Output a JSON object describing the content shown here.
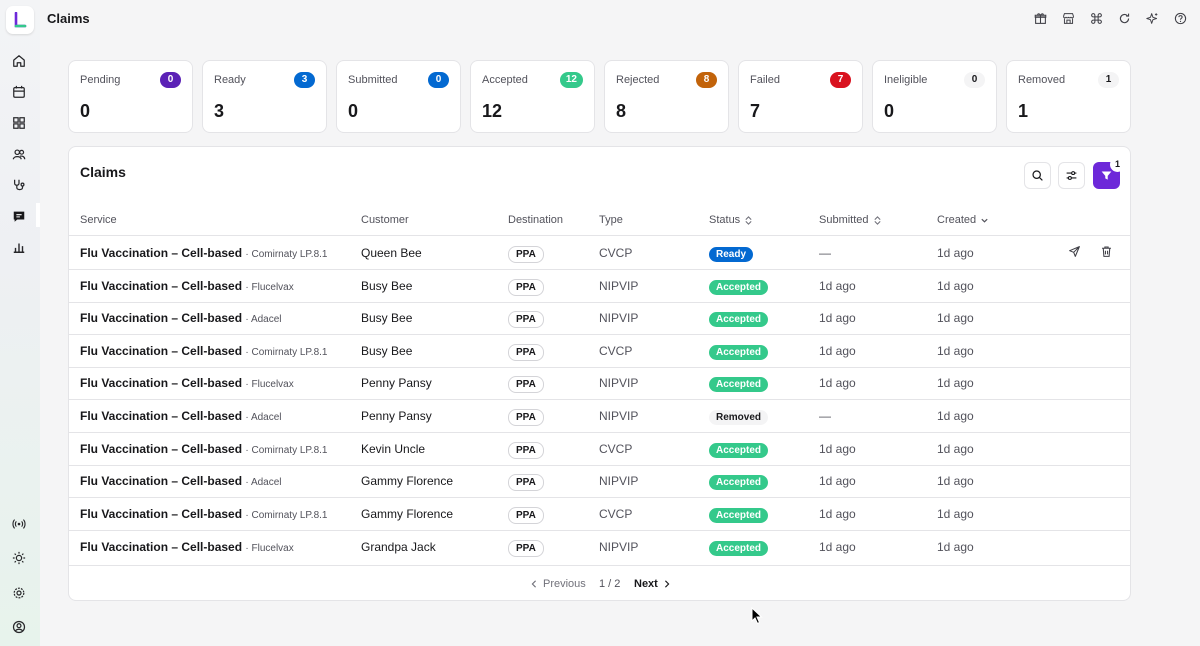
{
  "header": {
    "title": "Claims"
  },
  "colors": {
    "pending": "#5b21b6",
    "ready": "#0369d1",
    "submitted": "#0369d1",
    "accepted": "#34c98b",
    "rejected": "#c2630a",
    "failed": "#d9121f",
    "ineligible": "#f4f4f5",
    "removed": "#f4f4f5",
    "filter": "#6d28d9"
  },
  "cards": [
    {
      "label": "Pending",
      "badge": "0",
      "value": "0",
      "color": "#5b21b6",
      "light": false
    },
    {
      "label": "Ready",
      "badge": "3",
      "value": "3",
      "color": "#0369d1",
      "light": false
    },
    {
      "label": "Submitted",
      "badge": "0",
      "value": "0",
      "color": "#0369d1",
      "light": false
    },
    {
      "label": "Accepted",
      "badge": "12",
      "value": "12",
      "color": "#34c98b",
      "light": false
    },
    {
      "label": "Rejected",
      "badge": "8",
      "value": "8",
      "color": "#c2630a",
      "light": false
    },
    {
      "label": "Failed",
      "badge": "7",
      "value": "7",
      "color": "#d9121f",
      "light": false
    },
    {
      "label": "Ineligible",
      "badge": "0",
      "value": "0",
      "color": "#f4f4f5",
      "light": true
    },
    {
      "label": "Removed",
      "badge": "1",
      "value": "1",
      "color": "#f4f4f5",
      "light": true
    }
  ],
  "panel": {
    "title": "Claims",
    "filter_count": "1",
    "columns": {
      "service": "Service",
      "customer": "Customer",
      "destination": "Destination",
      "type": "Type",
      "status": "Status",
      "submitted": "Submitted",
      "created": "Created"
    },
    "rows": [
      {
        "service": "Flu Vaccination – Cell-based",
        "product": "· Comirnaty LP.8.1",
        "customer": "Queen Bee",
        "destination": "PPA",
        "type": "CVCP",
        "status": "Ready",
        "submitted": "—",
        "created": "1d ago",
        "actions": true
      },
      {
        "service": "Flu Vaccination – Cell-based",
        "product": "· Flucelvax",
        "customer": "Busy Bee",
        "destination": "PPA",
        "type": "NIPVIP",
        "status": "Accepted",
        "submitted": "1d ago",
        "created": "1d ago",
        "actions": false
      },
      {
        "service": "Flu Vaccination – Cell-based",
        "product": "· Adacel",
        "customer": "Busy Bee",
        "destination": "PPA",
        "type": "NIPVIP",
        "status": "Accepted",
        "submitted": "1d ago",
        "created": "1d ago",
        "actions": false
      },
      {
        "service": "Flu Vaccination – Cell-based",
        "product": "· Comirnaty LP.8.1",
        "customer": "Busy Bee",
        "destination": "PPA",
        "type": "CVCP",
        "status": "Accepted",
        "submitted": "1d ago",
        "created": "1d ago",
        "actions": false
      },
      {
        "service": "Flu Vaccination – Cell-based",
        "product": "· Flucelvax",
        "customer": "Penny Pansy",
        "destination": "PPA",
        "type": "NIPVIP",
        "status": "Accepted",
        "submitted": "1d ago",
        "created": "1d ago",
        "actions": false
      },
      {
        "service": "Flu Vaccination – Cell-based",
        "product": "· Adacel",
        "customer": "Penny Pansy",
        "destination": "PPA",
        "type": "NIPVIP",
        "status": "Removed",
        "submitted": "—",
        "created": "1d ago",
        "actions": false
      },
      {
        "service": "Flu Vaccination – Cell-based",
        "product": "· Comirnaty LP.8.1",
        "customer": "Kevin Uncle",
        "destination": "PPA",
        "type": "CVCP",
        "status": "Accepted",
        "submitted": "1d ago",
        "created": "1d ago",
        "actions": false
      },
      {
        "service": "Flu Vaccination – Cell-based",
        "product": "· Adacel",
        "customer": "Gammy Florence",
        "destination": "PPA",
        "type": "NIPVIP",
        "status": "Accepted",
        "submitted": "1d ago",
        "created": "1d ago",
        "actions": false
      },
      {
        "service": "Flu Vaccination – Cell-based",
        "product": "· Comirnaty LP.8.1",
        "customer": "Gammy Florence",
        "destination": "PPA",
        "type": "CVCP",
        "status": "Accepted",
        "submitted": "1d ago",
        "created": "1d ago",
        "actions": false
      },
      {
        "service": "Flu Vaccination – Cell-based",
        "product": "· Flucelvax",
        "customer": "Grandpa Jack",
        "destination": "PPA",
        "type": "NIPVIP",
        "status": "Accepted",
        "submitted": "1d ago",
        "created": "1d ago",
        "actions": false
      }
    ]
  },
  "pagination": {
    "previous": "Previous",
    "info": "1 / 2",
    "next": "Next"
  }
}
